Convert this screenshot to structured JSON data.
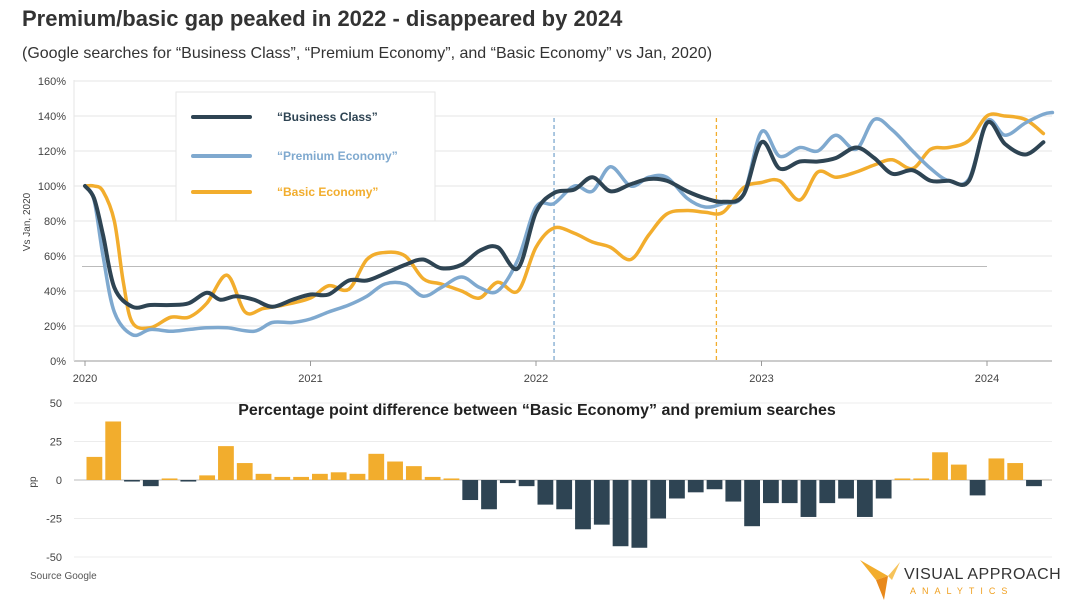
{
  "title": "Premium/basic gap peaked in 2022 - disappeared by 2024",
  "subtitle": "(Google searches for “Business Class”, “Premium Economy”, and “Basic Economy” vs Jan, 2020)",
  "source": "Source Google",
  "logo": {
    "name": "VISUAL APPROACH",
    "tagline": "ANALYTICS"
  },
  "colors": {
    "business": "#2e4453",
    "premium": "#7fa9cf",
    "basic": "#f2ad2d",
    "neg_bar": "#2e4453",
    "pos_bar": "#f2ad2d"
  },
  "chart_data": [
    {
      "type": "line",
      "title": "",
      "ylabel": "Vs Jan, 2020",
      "ylim": [
        0,
        160
      ],
      "yticks": [
        "0%",
        "20%",
        "40%",
        "60%",
        "80%",
        "100%",
        "120%",
        "140%",
        "160%"
      ],
      "xticks": [
        "2020",
        "2021",
        "2022",
        "2023",
        "2024"
      ],
      "x_start_year": 2020,
      "x_end_year": 2024.29,
      "annotations": [
        "2022.08",
        "2022.8"
      ],
      "reference_line": 54,
      "legend": [
        "“Business Class”",
        "“Premium Economy”",
        "“Basic Economy”"
      ],
      "legend_position": "top-left",
      "series": [
        {
          "name": "“Business Class”",
          "color": "#2e4453",
          "x": [
            2020,
            2020.04,
            2020.08,
            2020.13,
            2020.21,
            2020.29,
            2020.38,
            2020.46,
            2020.54,
            2020.6,
            2020.67,
            2020.75,
            2020.83,
            2020.92,
            2021,
            2021.08,
            2021.17,
            2021.25,
            2021.33,
            2021.42,
            2021.5,
            2021.58,
            2021.67,
            2021.75,
            2021.83,
            2021.92,
            2022,
            2022.08,
            2022.17,
            2022.25,
            2022.33,
            2022.42,
            2022.5,
            2022.58,
            2022.67,
            2022.75,
            2022.83,
            2022.92,
            2023,
            2023.08,
            2023.17,
            2023.25,
            2023.33,
            2023.42,
            2023.5,
            2023.58,
            2023.67,
            2023.75,
            2023.83,
            2023.92,
            2024,
            2024.08,
            2024.17,
            2024.25
          ],
          "y": [
            100,
            93,
            72,
            42,
            31,
            32,
            32,
            33,
            39,
            35,
            37,
            35,
            31,
            35,
            38,
            38,
            46,
            46,
            50,
            55,
            58,
            53,
            55,
            63,
            65,
            53,
            85,
            96,
            98,
            105,
            97,
            101,
            104,
            103,
            97,
            93,
            91,
            95,
            125,
            110,
            114,
            114,
            116,
            122,
            116,
            107,
            109,
            103,
            103,
            103,
            136,
            124,
            118,
            125
          ]
        },
        {
          "name": "“Premium Economy”",
          "color": "#7fa9cf",
          "x": [
            2020,
            2020.04,
            2020.08,
            2020.13,
            2020.21,
            2020.29,
            2020.38,
            2020.46,
            2020.54,
            2020.63,
            2020.75,
            2020.83,
            2020.92,
            2021,
            2021.08,
            2021.17,
            2021.25,
            2021.33,
            2021.42,
            2021.5,
            2021.58,
            2021.67,
            2021.75,
            2021.83,
            2021.92,
            2022,
            2022.08,
            2022.17,
            2022.25,
            2022.33,
            2022.42,
            2022.5,
            2022.58,
            2022.67,
            2022.75,
            2022.83,
            2022.92,
            2023,
            2023.08,
            2023.17,
            2023.25,
            2023.33,
            2023.42,
            2023.5,
            2023.58,
            2023.67,
            2023.75,
            2023.83,
            2023.92,
            2024,
            2024.08,
            2024.17,
            2024.25,
            2024.29
          ],
          "y": [
            100,
            92,
            60,
            28,
            15,
            18,
            17,
            18,
            19,
            19,
            17,
            22,
            22,
            24,
            28,
            32,
            37,
            44,
            44,
            37,
            42,
            48,
            42,
            40,
            58,
            88,
            90,
            100,
            97,
            111,
            100,
            105,
            105,
            93,
            88,
            90,
            95,
            131,
            117,
            122,
            120,
            129,
            121,
            138,
            132,
            120,
            110,
            103,
            104,
            137,
            129,
            136,
            141,
            142
          ]
        },
        {
          "name": "“Basic Economy”",
          "color": "#f2ad2d",
          "x": [
            2020,
            2020.04,
            2020.08,
            2020.13,
            2020.17,
            2020.21,
            2020.29,
            2020.38,
            2020.46,
            2020.54,
            2020.63,
            2020.71,
            2020.79,
            2020.88,
            2021,
            2021.08,
            2021.17,
            2021.25,
            2021.33,
            2021.42,
            2021.5,
            2021.58,
            2021.67,
            2021.75,
            2021.83,
            2021.92,
            2022,
            2022.08,
            2022.17,
            2022.25,
            2022.33,
            2022.42,
            2022.5,
            2022.58,
            2022.67,
            2022.75,
            2022.83,
            2022.92,
            2023,
            2023.08,
            2023.17,
            2023.25,
            2023.33,
            2023.42,
            2023.5,
            2023.58,
            2023.67,
            2023.75,
            2023.83,
            2023.92,
            2024,
            2024.08,
            2024.17,
            2024.25
          ],
          "y": [
            100,
            100,
            97,
            80,
            45,
            22,
            19,
            25,
            25,
            33,
            49,
            28,
            30,
            32,
            36,
            43,
            41,
            58,
            62,
            60,
            47,
            44,
            40,
            36,
            45,
            40,
            65,
            76,
            73,
            68,
            65,
            58,
            72,
            84,
            86,
            85,
            85,
            99,
            102,
            103,
            92,
            108,
            105,
            108,
            112,
            115,
            110,
            121,
            122,
            126,
            140,
            140,
            138,
            130
          ]
        }
      ]
    },
    {
      "type": "bar",
      "title": "Percentage point difference between “Basic Economy” and premium searches",
      "ylabel": "pp",
      "ylim": [
        -50,
        50
      ],
      "yticks": [
        "50",
        "25",
        "0",
        "-25",
        "-50"
      ],
      "x_start_year": 2020,
      "months_per_year": 12,
      "values": [
        15,
        38,
        -1,
        -4,
        1,
        -1,
        3,
        22,
        11,
        4,
        2,
        2,
        4,
        5,
        4,
        17,
        12,
        9,
        2,
        1,
        -13,
        -19,
        -2,
        -4,
        -16,
        -19,
        -32,
        -29,
        -43,
        -44,
        -25,
        -12,
        -8,
        -6,
        -14,
        -30,
        -15,
        -15,
        -24,
        -15,
        -12,
        -24,
        -12,
        1,
        1,
        18,
        10,
        -10,
        14,
        11,
        -4
      ]
    }
  ]
}
